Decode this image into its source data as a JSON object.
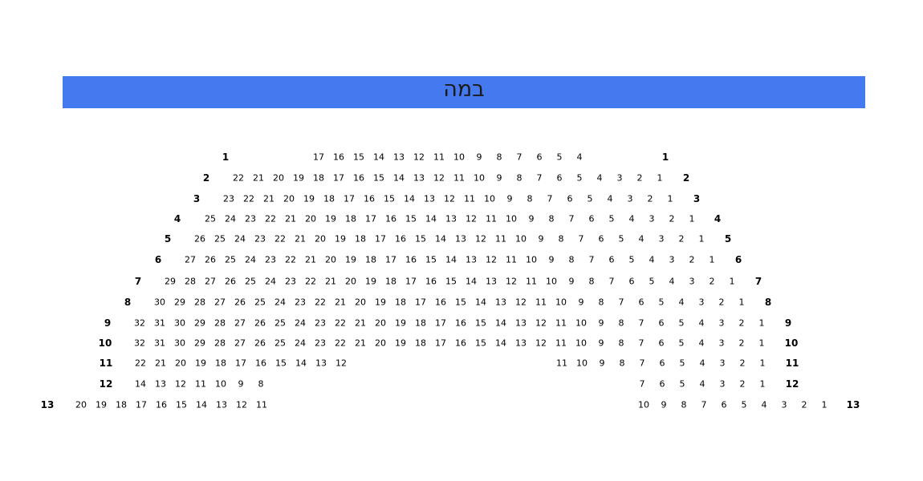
{
  "stage": {
    "label": "במה",
    "color": "#4579f0"
  },
  "rows": [
    {
      "row": "1",
      "groups": [
        [
          17,
          16,
          15,
          14,
          13,
          12,
          11,
          10,
          9,
          8,
          7,
          6,
          5,
          4
        ]
      ]
    },
    {
      "row": "2",
      "groups": [
        [
          22,
          21,
          20,
          19,
          18,
          17,
          16,
          15,
          14,
          13,
          12,
          11,
          10,
          9,
          8,
          7,
          6,
          5,
          4,
          3,
          2,
          1
        ]
      ]
    },
    {
      "row": "3",
      "groups": [
        [
          23,
          22,
          21,
          20,
          19,
          18,
          17,
          16,
          15,
          14,
          13,
          12,
          11,
          10,
          9,
          8,
          7,
          6,
          5,
          4,
          3,
          2,
          1
        ]
      ]
    },
    {
      "row": "4",
      "groups": [
        [
          25,
          24,
          23,
          22,
          21,
          20,
          19,
          18,
          17,
          16,
          15,
          14,
          13,
          12,
          11,
          10,
          9,
          8,
          7,
          6,
          5,
          4,
          3,
          2,
          1
        ]
      ]
    },
    {
      "row": "5",
      "groups": [
        [
          26,
          25,
          24,
          23,
          22,
          21,
          20,
          19,
          18,
          17,
          16,
          15,
          14,
          13,
          12,
          11,
          10,
          9,
          8,
          7,
          6,
          5,
          4,
          3,
          2,
          1
        ]
      ]
    },
    {
      "row": "6",
      "groups": [
        [
          27,
          26,
          25,
          24,
          23,
          22,
          21,
          20,
          19,
          18,
          17,
          16,
          15,
          14,
          13,
          12,
          11,
          10,
          9,
          8,
          7,
          6,
          5,
          4,
          3,
          2,
          1
        ]
      ]
    },
    {
      "row": "7",
      "groups": [
        [
          29,
          28,
          27,
          26,
          25,
          24,
          23,
          22,
          21,
          20,
          19,
          18,
          17,
          16,
          15,
          14,
          13,
          12,
          11,
          10,
          9,
          8,
          7,
          6,
          5,
          4,
          3,
          2,
          1
        ]
      ]
    },
    {
      "row": "8",
      "groups": [
        [
          30,
          29,
          28,
          27,
          26,
          25,
          24,
          23,
          22,
          21,
          20,
          19,
          18,
          17,
          16,
          15,
          14,
          13,
          12,
          11,
          10,
          9,
          8,
          7,
          6,
          5,
          4,
          3,
          2,
          1
        ]
      ]
    },
    {
      "row": "9",
      "groups": [
        [
          32,
          31,
          30,
          29,
          28,
          27,
          26,
          25,
          24,
          23,
          22,
          21,
          20,
          19,
          18,
          17,
          16,
          15,
          14,
          13,
          12,
          11,
          10,
          9,
          8,
          7,
          6,
          5,
          4,
          3,
          2,
          1
        ]
      ]
    },
    {
      "row": "10",
      "groups": [
        [
          32,
          31,
          30,
          29,
          28,
          27,
          26,
          25,
          24,
          23,
          22,
          21,
          20,
          19,
          18,
          17,
          16,
          15,
          14,
          13,
          12,
          11,
          10,
          9,
          8,
          7,
          6,
          5,
          4,
          3,
          2,
          1
        ]
      ]
    },
    {
      "row": "11",
      "groups": [
        [
          22,
          21,
          20,
          19,
          18,
          17,
          16,
          15,
          14,
          13,
          12
        ],
        [
          11,
          10,
          9,
          8,
          7,
          6,
          5,
          4,
          3,
          2,
          1
        ]
      ]
    },
    {
      "row": "12",
      "groups": [
        [
          14,
          13,
          12,
          11,
          10,
          9,
          8
        ],
        [
          7,
          6,
          5,
          4,
          3,
          2,
          1
        ]
      ]
    },
    {
      "row": "13",
      "groups": [
        [
          20,
          19,
          18,
          17,
          16,
          15,
          14,
          13,
          12,
          11
        ],
        [
          10,
          9,
          8,
          7,
          6,
          5,
          4,
          3,
          2,
          1
        ]
      ]
    }
  ]
}
